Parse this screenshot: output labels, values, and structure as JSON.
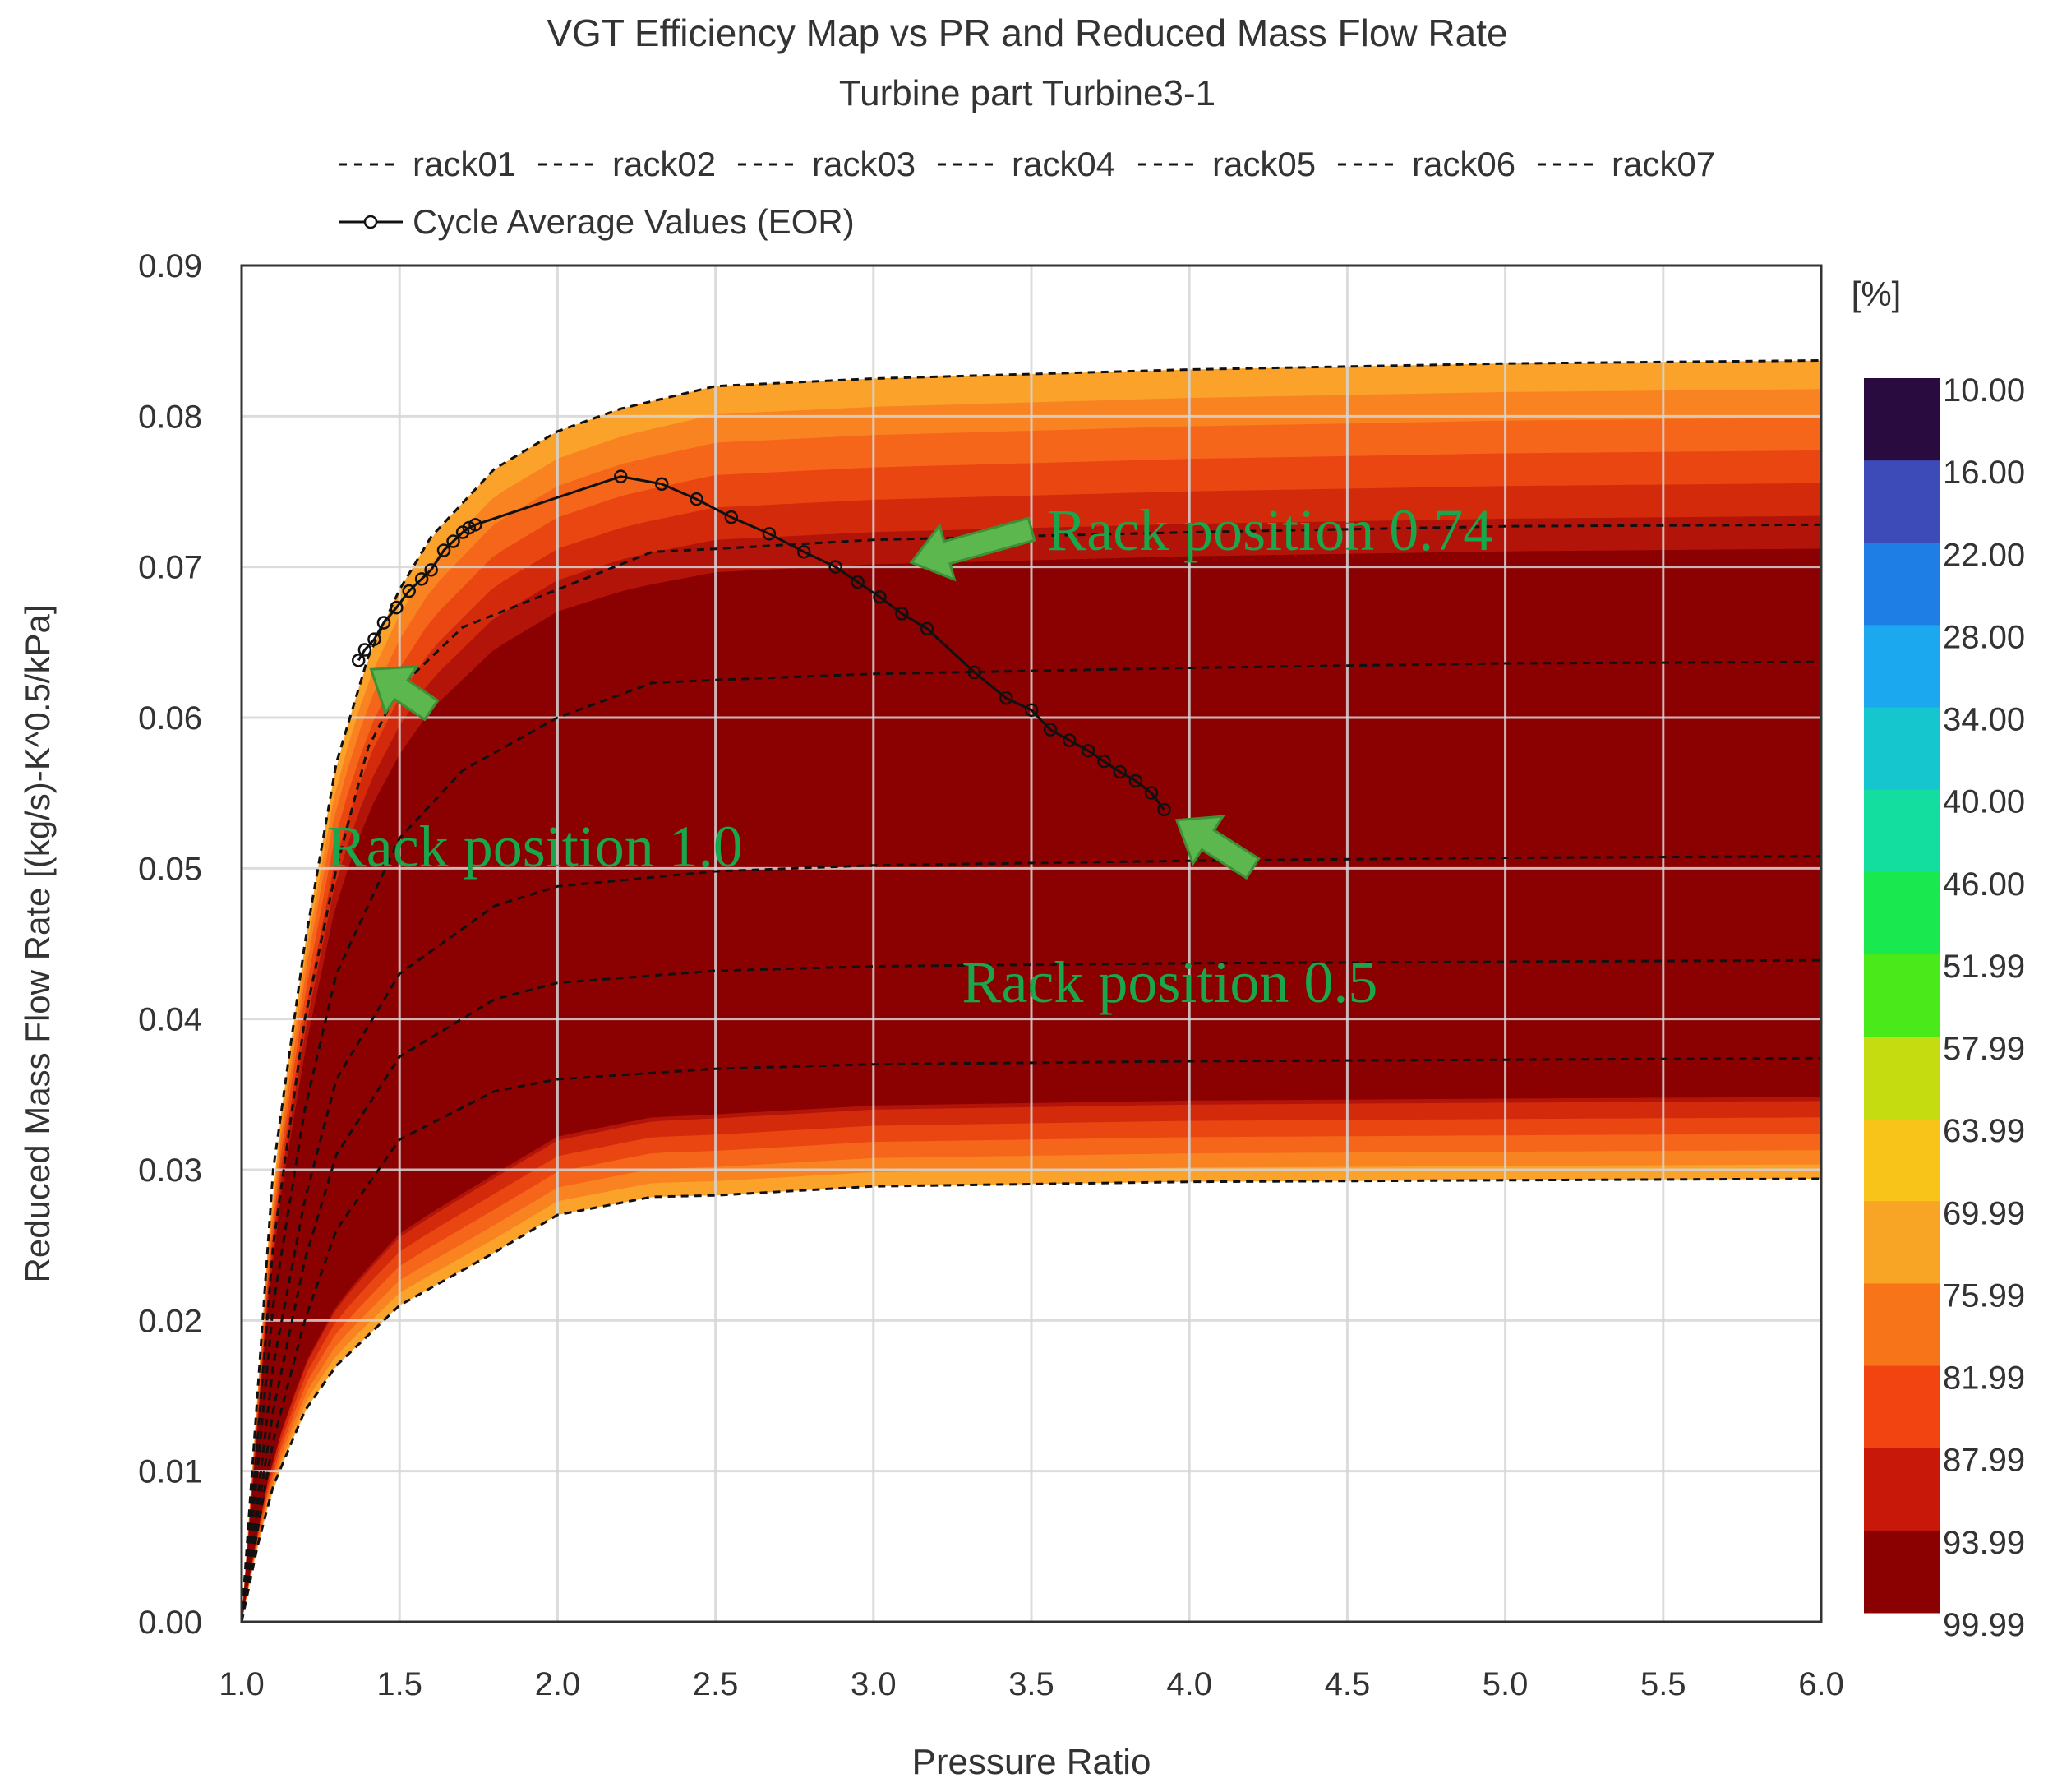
{
  "chart_data": {
    "type": "heatmap",
    "title": "VGT Efficiency Map vs PR and Reduced Mass Flow Rate",
    "subtitle": "Turbine part Turbine3-1",
    "xlabel": "Pressure Ratio",
    "ylabel": "Reduced Mass Flow Rate [(kg/s)-K^0.5/kPa]",
    "xlim": [
      1.0,
      6.0
    ],
    "ylim": [
      0.0,
      0.09
    ],
    "x_ticks": [
      "1.0",
      "1.5",
      "2.0",
      "2.5",
      "3.0",
      "3.5",
      "4.0",
      "4.5",
      "5.0",
      "5.5",
      "6.0"
    ],
    "y_ticks": [
      "0.00",
      "0.01",
      "0.02",
      "0.03",
      "0.04",
      "0.05",
      "0.06",
      "0.07",
      "0.08",
      "0.09"
    ],
    "grid": true,
    "legend_position": "top",
    "legend": [
      "rack01",
      "rack02",
      "rack03",
      "rack04",
      "rack05",
      "rack06",
      "rack07",
      "Cycle Average Values (EOR)"
    ],
    "colorbar": {
      "unit": "[%]",
      "labels": [
        "10.00",
        "16.00",
        "22.00",
        "28.00",
        "34.00",
        "40.00",
        "46.00",
        "51.99",
        "57.99",
        "63.99",
        "69.99",
        "75.99",
        "81.99",
        "87.99",
        "93.99",
        "99.99"
      ],
      "colors": [
        "#2a0b3f",
        "#3c4bb7",
        "#1e7ee6",
        "#1ba8ee",
        "#16c6cf",
        "#14de9f",
        "#1ae84f",
        "#4aea1a",
        "#c4dc10",
        "#f8c41a",
        "#f8a424",
        "#f87418",
        "#f24410",
        "#c8180a",
        "#8b0000"
      ]
    },
    "region_colors": [
      "#fba22a",
      "#f88320",
      "#f5651a",
      "#ea4612",
      "#d22a0b",
      "#b3140a",
      "#8b0000"
    ],
    "rack_lines": [
      {
        "name": "rack01",
        "x": [
          1.0,
          1.05,
          1.1,
          1.2,
          1.3,
          1.4,
          1.5,
          1.6,
          1.8,
          2.0,
          2.2,
          2.5,
          3.0,
          4.0,
          5.0,
          6.0
        ],
        "y": [
          0.0,
          0.015,
          0.03,
          0.045,
          0.057,
          0.064,
          0.0685,
          0.072,
          0.0765,
          0.079,
          0.0805,
          0.082,
          0.0825,
          0.0831,
          0.0835,
          0.0837
        ]
      },
      {
        "name": "rack02",
        "x": [
          1.0,
          1.05,
          1.1,
          1.2,
          1.3,
          1.4,
          1.5,
          1.7,
          2.0,
          2.3,
          2.5,
          3.0,
          4.0,
          5.0,
          6.0
        ],
        "y": [
          0.0,
          0.012,
          0.025,
          0.04,
          0.05,
          0.058,
          0.062,
          0.066,
          0.0685,
          0.071,
          0.0712,
          0.0718,
          0.0723,
          0.0727,
          0.0728
        ]
      },
      {
        "name": "rack03",
        "x": [
          1.0,
          1.05,
          1.1,
          1.2,
          1.3,
          1.5,
          1.7,
          2.0,
          2.3,
          2.5,
          3.0,
          4.0,
          5.0,
          6.0
        ],
        "y": [
          0.0,
          0.01,
          0.021,
          0.034,
          0.043,
          0.052,
          0.0565,
          0.06,
          0.0623,
          0.0625,
          0.0629,
          0.0633,
          0.0636,
          0.0637
        ]
      },
      {
        "name": "rack04",
        "x": [
          1.0,
          1.05,
          1.1,
          1.2,
          1.3,
          1.5,
          1.8,
          2.0,
          2.5,
          3.0,
          4.0,
          5.0,
          6.0
        ],
        "y": [
          0.0,
          0.008,
          0.017,
          0.028,
          0.036,
          0.043,
          0.0475,
          0.0488,
          0.0498,
          0.0502,
          0.0505,
          0.0507,
          0.0508
        ]
      },
      {
        "name": "rack05",
        "x": [
          1.0,
          1.05,
          1.1,
          1.2,
          1.3,
          1.5,
          1.8,
          2.0,
          2.5,
          3.0,
          4.0,
          5.0,
          6.0
        ],
        "y": [
          0.0,
          0.007,
          0.014,
          0.024,
          0.031,
          0.0375,
          0.0413,
          0.0424,
          0.0432,
          0.0435,
          0.0437,
          0.0438,
          0.0439
        ]
      },
      {
        "name": "rack06",
        "x": [
          1.0,
          1.05,
          1.1,
          1.2,
          1.3,
          1.5,
          1.8,
          2.0,
          2.5,
          3.0,
          4.0,
          5.0,
          6.0
        ],
        "y": [
          0.0,
          0.006,
          0.012,
          0.02,
          0.026,
          0.032,
          0.0352,
          0.036,
          0.0367,
          0.037,
          0.0372,
          0.0373,
          0.0374
        ]
      },
      {
        "name": "rack07",
        "x": [
          1.0,
          1.05,
          1.1,
          1.2,
          1.3,
          1.5,
          1.8,
          2.0,
          2.3,
          2.5,
          3.0,
          4.0,
          5.0,
          6.0
        ],
        "y": [
          0.0,
          0.005,
          0.009,
          0.014,
          0.017,
          0.021,
          0.0245,
          0.027,
          0.0282,
          0.0283,
          0.0289,
          0.0292,
          0.0293,
          0.0294
        ]
      }
    ],
    "map_lower_boundary": {
      "x": [
        1.0,
        1.05,
        1.1,
        1.2,
        1.3,
        1.5,
        1.8,
        2.0,
        2.3,
        2.5,
        3.0,
        4.0,
        5.0,
        6.0
      ],
      "y": [
        0.0,
        0.005,
        0.009,
        0.014,
        0.017,
        0.021,
        0.0245,
        0.027,
        0.0282,
        0.0283,
        0.0289,
        0.0292,
        0.0293,
        0.0294
      ]
    },
    "cycle_average": {
      "name": "Cycle Average Values (EOR)",
      "x": [
        1.37,
        1.39,
        1.42,
        1.45,
        1.49,
        1.53,
        1.57,
        1.6,
        1.64,
        1.67,
        1.7,
        1.72,
        1.74,
        2.2,
        2.33,
        2.44,
        2.55,
        2.67,
        2.78,
        2.88,
        2.95,
        3.02,
        3.09,
        3.17,
        3.32,
        3.42,
        3.5,
        3.56,
        3.62,
        3.68,
        3.73,
        3.78,
        3.83,
        3.88,
        3.92
      ],
      "y": [
        0.0638,
        0.0645,
        0.0652,
        0.0663,
        0.0673,
        0.0684,
        0.0692,
        0.0698,
        0.0711,
        0.0717,
        0.0723,
        0.0726,
        0.0728,
        0.076,
        0.0755,
        0.0745,
        0.0733,
        0.0722,
        0.071,
        0.07,
        0.069,
        0.068,
        0.0669,
        0.0659,
        0.063,
        0.0613,
        0.0605,
        0.0592,
        0.0585,
        0.0578,
        0.0571,
        0.0564,
        0.0558,
        0.055,
        0.0539
      ]
    },
    "annotations": [
      {
        "text": "Rack position 0.74",
        "color": "#1aa64c",
        "anchor_x": 3.55,
        "anchor_y": 0.0725
      },
      {
        "text": "Rack position 1.0",
        "color": "#1aa64c",
        "anchor_x": 1.27,
        "anchor_y": 0.0515
      },
      {
        "text": "Rack position 0.5",
        "color": "#1aa64c",
        "anchor_x": 3.28,
        "anchor_y": 0.0425
      }
    ],
    "arrows": [
      {
        "color": "#5cb84e",
        "from": [
          3.5,
          0.0725
        ],
        "to": [
          3.12,
          0.0703
        ]
      },
      {
        "color": "#5cb84e",
        "from": [
          1.6,
          0.0605
        ],
        "to": [
          1.41,
          0.0632
        ]
      },
      {
        "color": "#5cb84e",
        "from": [
          4.2,
          0.05
        ],
        "to": [
          3.96,
          0.0532
        ]
      }
    ]
  }
}
